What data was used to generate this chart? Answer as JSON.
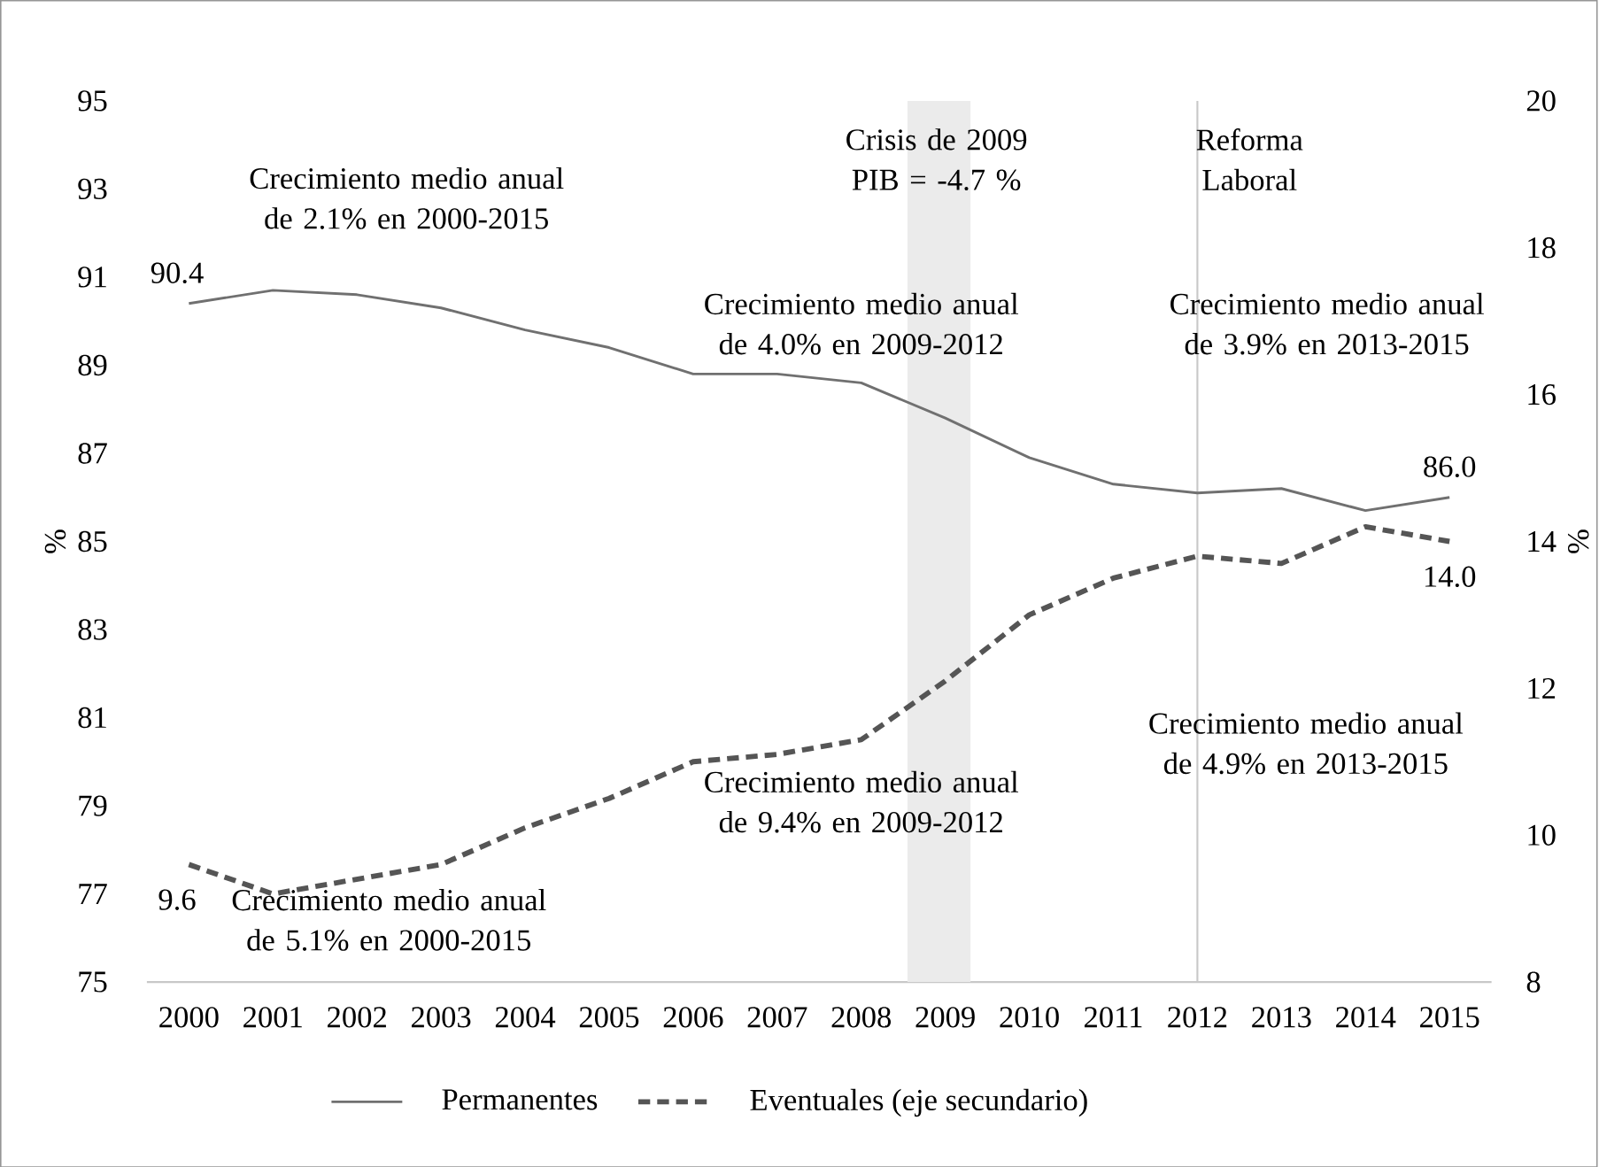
{
  "chart_data": {
    "type": "line",
    "x": [
      2000,
      2001,
      2002,
      2003,
      2004,
      2005,
      2006,
      2007,
      2008,
      2009,
      2010,
      2011,
      2012,
      2013,
      2014,
      2015
    ],
    "xlim": [
      1999.5,
      2015.5
    ],
    "xticks": [
      2000,
      2001,
      2002,
      2003,
      2004,
      2005,
      2006,
      2007,
      2008,
      2009,
      2010,
      2011,
      2012,
      2013,
      2014,
      2015
    ],
    "ylim": [
      75,
      95
    ],
    "yticks": [
      75,
      77,
      79,
      81,
      83,
      85,
      87,
      89,
      91,
      93,
      95
    ],
    "y2lim": [
      8,
      20
    ],
    "y2ticks": [
      8,
      10,
      12,
      14,
      16,
      18,
      20
    ],
    "ylabel": "%",
    "y2label": "%",
    "legend": "bottom",
    "series": [
      {
        "name": "Permanentes",
        "color": "#707070",
        "line_style": "solid",
        "values": [
          90.4,
          90.7,
          90.6,
          90.3,
          89.8,
          89.4,
          88.8,
          88.8,
          88.6,
          87.8,
          86.9,
          86.3,
          86.1,
          86.2,
          85.7,
          86.0
        ],
        "value_labels": [
          "90.4",
          null,
          null,
          null,
          null,
          null,
          null,
          null,
          null,
          null,
          null,
          null,
          null,
          null,
          null,
          "86.0"
        ]
      },
      {
        "name": "Eventuales (eje secundario)",
        "color": "#555555",
        "line_style": "dashed",
        "axis": "y2",
        "values": [
          9.6,
          9.2,
          9.4,
          9.6,
          10.1,
          10.5,
          11.0,
          11.1,
          11.3,
          12.1,
          13.0,
          13.5,
          13.8,
          13.7,
          14.2,
          14.0
        ],
        "value_labels": [
          "9.6",
          null,
          null,
          null,
          null,
          null,
          null,
          null,
          null,
          null,
          null,
          null,
          null,
          null,
          null,
          "14.0"
        ]
      }
    ],
    "bands": [
      {
        "axis": "x",
        "from": 2008.55,
        "to": 2009.3,
        "label": "Crisis de 2009 PIB = -4.7 %",
        "color": "#ebebeb"
      }
    ],
    "ref_lines": [
      {
        "axis": "x",
        "value": 2012,
        "label": "Reforma Laboral",
        "color": "#c8c8c8"
      }
    ],
    "annotations": [
      "Crecimiento medio anual de 2.1% en 2000-2015",
      "Crecimiento medio anual de 5.1% en 2000-2015",
      "Crecimiento medio anual de 4.0% en 2009-2012",
      "Crecimiento medio anual de 9.4% en 2009-2012",
      "Crecimiento medio anual de 3.9% en 2013-2015",
      "Crecimiento medio anual de 4.9% en 2013-2015"
    ]
  }
}
